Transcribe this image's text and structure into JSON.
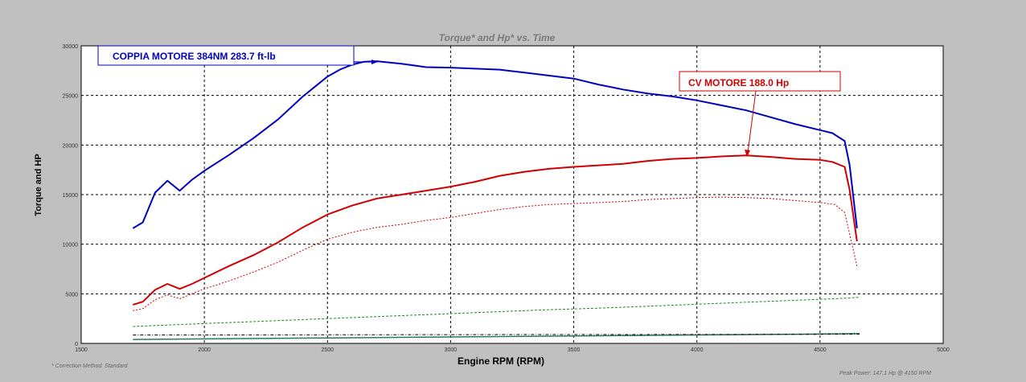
{
  "chart_data": {
    "type": "line",
    "title": "Torque* and Hp* vs. Time",
    "xlabel": "Engine RPM (RPM)",
    "ylabel": "Torque and HP",
    "xlim": [
      1500,
      5000
    ],
    "ylim": [
      0,
      30000
    ],
    "xticks": [
      "1500",
      "2000",
      "2500",
      "3000",
      "3500",
      "4000",
      "4500",
      "5000"
    ],
    "yticks": [
      "0",
      "5000",
      "10000",
      "15000",
      "20000",
      "25000",
      "30000"
    ],
    "grid": true,
    "series": [
      {
        "color": "#0000c0",
        "width": 2,
        "dash": "",
        "points": [
          [
            1710,
            11600
          ],
          [
            1750,
            12200
          ],
          [
            1800,
            15200
          ],
          [
            1850,
            16400
          ],
          [
            1900,
            15400
          ],
          [
            1950,
            16500
          ],
          [
            2000,
            17400
          ],
          [
            2100,
            19000
          ],
          [
            2200,
            20700
          ],
          [
            2300,
            22600
          ],
          [
            2400,
            24900
          ],
          [
            2500,
            26900
          ],
          [
            2550,
            27600
          ],
          [
            2600,
            28100
          ],
          [
            2650,
            28400
          ],
          [
            2700,
            28450
          ],
          [
            2800,
            28200
          ],
          [
            2900,
            27850
          ],
          [
            3000,
            27800
          ],
          [
            3100,
            27700
          ],
          [
            3200,
            27600
          ],
          [
            3300,
            27300
          ],
          [
            3400,
            27000
          ],
          [
            3500,
            26700
          ],
          [
            3600,
            26100
          ],
          [
            3700,
            25600
          ],
          [
            3800,
            25200
          ],
          [
            3900,
            24900
          ],
          [
            4000,
            24500
          ],
          [
            4100,
            24000
          ],
          [
            4200,
            23500
          ],
          [
            4300,
            22800
          ],
          [
            4400,
            22100
          ],
          [
            4500,
            21500
          ],
          [
            4550,
            21200
          ],
          [
            4600,
            20400
          ],
          [
            4620,
            18000
          ],
          [
            4650,
            11600
          ]
        ]
      },
      {
        "color": "#d00000",
        "width": 2,
        "dash": "",
        "points": [
          [
            1710,
            3900
          ],
          [
            1750,
            4200
          ],
          [
            1800,
            5400
          ],
          [
            1850,
            6000
          ],
          [
            1900,
            5500
          ],
          [
            1950,
            6000
          ],
          [
            2000,
            6600
          ],
          [
            2100,
            7800
          ],
          [
            2200,
            8900
          ],
          [
            2300,
            10200
          ],
          [
            2400,
            11700
          ],
          [
            2500,
            13000
          ],
          [
            2600,
            13900
          ],
          [
            2700,
            14600
          ],
          [
            2800,
            15000
          ],
          [
            2900,
            15400
          ],
          [
            3000,
            15800
          ],
          [
            3100,
            16300
          ],
          [
            3200,
            16900
          ],
          [
            3300,
            17300
          ],
          [
            3400,
            17600
          ],
          [
            3500,
            17800
          ],
          [
            3600,
            17950
          ],
          [
            3700,
            18100
          ],
          [
            3800,
            18400
          ],
          [
            3900,
            18600
          ],
          [
            4000,
            18700
          ],
          [
            4100,
            18850
          ],
          [
            4200,
            18950
          ],
          [
            4300,
            18800
          ],
          [
            4400,
            18600
          ],
          [
            4500,
            18500
          ],
          [
            4550,
            18300
          ],
          [
            4600,
            17800
          ],
          [
            4620,
            15500
          ],
          [
            4650,
            10300
          ]
        ]
      },
      {
        "color": "#d00000",
        "width": 1,
        "dash": "2,2",
        "points": [
          [
            1710,
            3300
          ],
          [
            1750,
            3500
          ],
          [
            1800,
            4400
          ],
          [
            1850,
            4900
          ],
          [
            1900,
            4500
          ],
          [
            1950,
            5000
          ],
          [
            2000,
            5500
          ],
          [
            2100,
            6300
          ],
          [
            2200,
            7200
          ],
          [
            2300,
            8200
          ],
          [
            2400,
            9400
          ],
          [
            2500,
            10500
          ],
          [
            2600,
            11200
          ],
          [
            2700,
            11700
          ],
          [
            2800,
            12000
          ],
          [
            2900,
            12400
          ],
          [
            3000,
            12700
          ],
          [
            3100,
            13100
          ],
          [
            3200,
            13500
          ],
          [
            3300,
            13800
          ],
          [
            3400,
            14000
          ],
          [
            3500,
            14100
          ],
          [
            3600,
            14200
          ],
          [
            3700,
            14300
          ],
          [
            3800,
            14500
          ],
          [
            3900,
            14600
          ],
          [
            4000,
            14700
          ],
          [
            4100,
            14750
          ],
          [
            4200,
            14700
          ],
          [
            4300,
            14600
          ],
          [
            4400,
            14400
          ],
          [
            4500,
            14200
          ],
          [
            4560,
            14000
          ],
          [
            4600,
            13200
          ],
          [
            4650,
            7800
          ]
        ]
      },
      {
        "color": "#1a8a1a",
        "width": 1,
        "dash": "3,2",
        "points": [
          [
            1710,
            1700
          ],
          [
            1800,
            1800
          ],
          [
            1900,
            1900
          ],
          [
            2000,
            2000
          ],
          [
            2200,
            2200
          ],
          [
            2400,
            2400
          ],
          [
            2600,
            2600
          ],
          [
            2800,
            2800
          ],
          [
            3000,
            3000
          ],
          [
            3200,
            3200
          ],
          [
            3400,
            3400
          ],
          [
            3600,
            3550
          ],
          [
            3800,
            3750
          ],
          [
            4000,
            3950
          ],
          [
            4200,
            4150
          ],
          [
            4400,
            4350
          ],
          [
            4600,
            4550
          ],
          [
            4660,
            4650
          ]
        ]
      },
      {
        "color": "#2a7a5a",
        "width": 1.5,
        "dash": "",
        "points": [
          [
            1710,
            400
          ],
          [
            2000,
            450
          ],
          [
            2500,
            550
          ],
          [
            3000,
            650
          ],
          [
            3500,
            750
          ],
          [
            4000,
            850
          ],
          [
            4500,
            950
          ],
          [
            4660,
            1000
          ]
        ]
      },
      {
        "color": "#000000",
        "width": 1,
        "dash": "4,2,1,2",
        "points": [
          [
            1710,
            850
          ],
          [
            2000,
            850
          ],
          [
            2500,
            870
          ],
          [
            3000,
            880
          ],
          [
            3500,
            890
          ],
          [
            4000,
            900
          ],
          [
            4500,
            920
          ],
          [
            4660,
            930
          ]
        ]
      }
    ],
    "annotations": [
      {
        "text": "COPPIA MOTORE 384NM  283.7 ft-lb",
        "color": "#0000c0"
      },
      {
        "text": "CV MOTORE 188.0 Hp",
        "color": "#d00000"
      }
    ],
    "footnote_left": "* Correction Method: Standard",
    "footnote_right": "Peak Power: 147.1 Hp @ 4150 RPM"
  }
}
